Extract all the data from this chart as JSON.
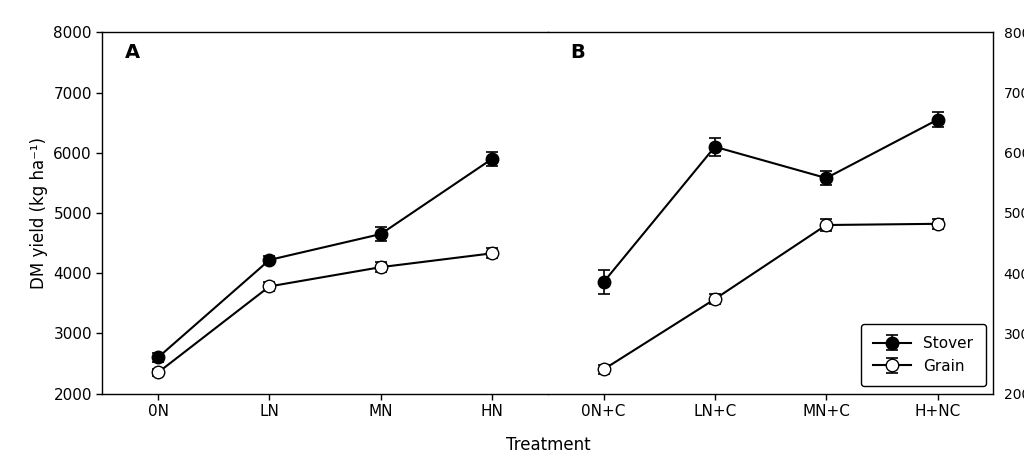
{
  "panel_A": {
    "label": "A",
    "x_labels": [
      "0N",
      "LN",
      "MN",
      "HN"
    ],
    "stover_mean": [
      2600,
      4220,
      4650,
      5900
    ],
    "stover_err": [
      80,
      60,
      120,
      120
    ],
    "grain_mean": [
      2350,
      3780,
      4100,
      4330
    ],
    "grain_err": [
      60,
      70,
      80,
      80
    ]
  },
  "panel_B": {
    "label": "B",
    "x_labels": [
      "0N+C",
      "LN+C",
      "MN+C",
      "H+NC"
    ],
    "stover_mean": [
      3850,
      6100,
      5580,
      6550
    ],
    "stover_err": [
      200,
      150,
      120,
      120
    ],
    "grain_mean": [
      2400,
      3570,
      4800,
      4820
    ],
    "grain_err": [
      80,
      80,
      100,
      80
    ]
  },
  "ylabel": "DM yield (kg ha⁻¹)",
  "xlabel": "Treatment",
  "ylim": [
    2000,
    8000
  ],
  "yticks": [
    2000,
    3000,
    4000,
    5000,
    6000,
    7000,
    8000
  ],
  "legend_labels": [
    "Stover",
    "Grain"
  ],
  "markersize": 9,
  "linewidth": 1.5,
  "capsize": 4,
  "label_fontsize": 14,
  "tick_fontsize": 11,
  "axis_fontsize": 12
}
